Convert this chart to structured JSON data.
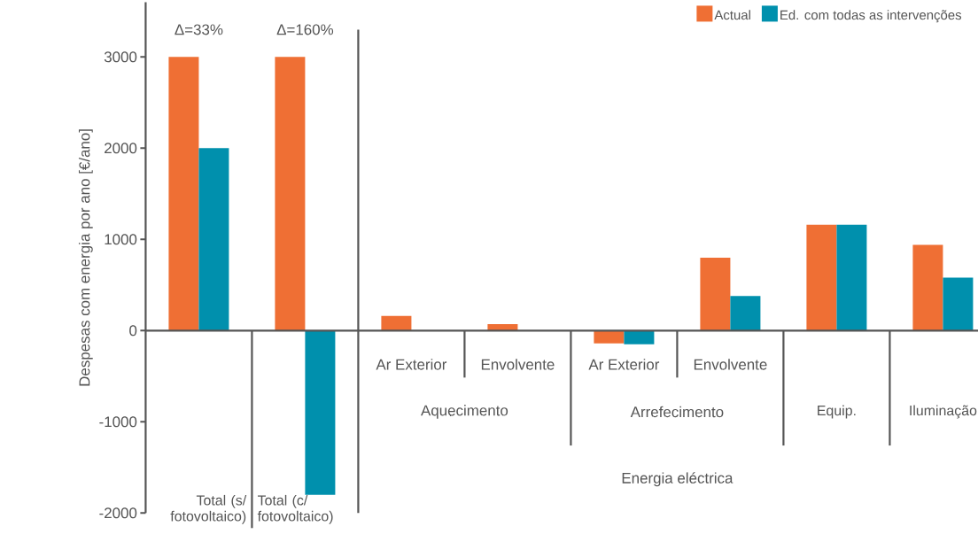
{
  "chart_data": {
    "type": "bar",
    "ylabel": "Despesas com energia por ano [€/ano]",
    "categories": [
      "Total (s/ fotovoltaico)",
      "Total (c/ fotovoltaico)",
      "Ar Exterior",
      "Envolvente",
      "Ar Exterior",
      "Envolvente",
      "Equip.",
      "Iluminação"
    ],
    "series": [
      {
        "name": "Actual",
        "color": "#ef6f34",
        "values": [
          3000,
          3000,
          160,
          70,
          -140,
          800,
          1160,
          940
        ]
      },
      {
        "name": "Ed. com todas as intervenções",
        "color": "#0090ad",
        "values": [
          2000,
          -1800,
          0,
          0,
          -150,
          380,
          1160,
          580
        ]
      }
    ],
    "ylim": [
      -2000,
      3600
    ],
    "yticks": [
      -2000,
      -1000,
      0,
      1000,
      2000,
      3000
    ],
    "legend": "top right",
    "annotations": [
      "Aquecimento",
      "Arrefecimento",
      "Energia eléctrica",
      "Δ=33%",
      "Δ=160%"
    ]
  }
}
